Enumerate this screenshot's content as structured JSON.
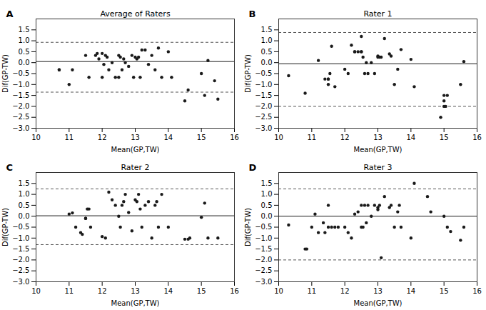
{
  "chart_data": [
    {
      "type": "scatter",
      "label": "A",
      "title": "Average of Raters",
      "xlabel": "Mean(GP,TW)",
      "ylabel": "Dif(GP-TW)",
      "x": [
        10.7,
        10.7,
        11.0,
        11.1,
        11.5,
        11.6,
        11.8,
        11.85,
        11.9,
        12.0,
        12.0,
        12.05,
        12.1,
        12.15,
        12.2,
        12.3,
        12.4,
        12.5,
        12.5,
        12.55,
        12.6,
        12.65,
        12.7,
        12.8,
        12.9,
        12.95,
        13.0,
        13.05,
        13.1,
        13.15,
        13.2,
        13.3,
        13.4,
        13.5,
        13.6,
        13.7,
        13.8,
        14.0,
        14.1,
        14.5,
        14.6,
        15.0,
        15.1,
        15.2,
        15.4,
        15.5
      ],
      "y": [
        -0.33,
        -0.33,
        -1.0,
        -0.33,
        0.33,
        -0.67,
        0.33,
        0.42,
        0.17,
        0.42,
        -0.67,
        -0.08,
        0.33,
        0.25,
        -0.33,
        0.0,
        -0.67,
        0.33,
        -0.67,
        0.25,
        -0.33,
        0.17,
        0.0,
        -0.17,
        0.33,
        -0.67,
        0.25,
        0.17,
        0.25,
        -0.67,
        0.58,
        0.58,
        -0.08,
        0.33,
        -0.33,
        0.67,
        -0.67,
        0.5,
        -0.67,
        -1.75,
        -1.25,
        -0.5,
        -1.5,
        0.1,
        -0.83,
        -1.67
      ],
      "color": "#1a1a1a",
      "mean_line": {
        "value": 0.05,
        "color": "#1a1a1a",
        "line_style": "solid"
      },
      "upper_loa": {
        "value": 0.93,
        "color": "#555555",
        "line_style": "dashed"
      },
      "lower_loa": {
        "value": -1.35,
        "color": "#555555",
        "line_style": "dashed"
      },
      "xlim": [
        10,
        16
      ],
      "xticks": [
        10,
        11,
        12,
        13,
        14,
        15,
        16
      ],
      "ylim": [
        -3,
        2
      ],
      "yticks": [
        {
          "value": -3,
          "label": "−3.0"
        },
        {
          "value": -2.5,
          "label": "−2.5"
        },
        {
          "value": -2,
          "label": "−2.0"
        },
        {
          "value": -1.5,
          "label": "−1.5"
        },
        {
          "value": -1,
          "label": "−1.0"
        },
        {
          "value": -0.5,
          "label": "−0.5"
        },
        {
          "value": 0,
          "label": "0.0"
        },
        0.5,
        {
          "value": 1,
          "label": "1.0"
        },
        1.5
      ],
      "grid": false
    },
    {
      "type": "scatter",
      "label": "B",
      "title": "Rater 1",
      "xlabel": "Mean(GP,TW)",
      "ylabel": "Dif(GP-TW)",
      "x": [
        10.3,
        10.8,
        11.2,
        11.4,
        11.5,
        11.5,
        11.5,
        11.55,
        11.6,
        11.7,
        12.0,
        12.1,
        12.2,
        12.3,
        12.3,
        12.4,
        12.5,
        12.5,
        12.5,
        12.55,
        12.6,
        12.65,
        12.7,
        12.8,
        12.9,
        13.0,
        13.0,
        13.05,
        13.1,
        13.2,
        13.35,
        13.4,
        13.5,
        13.6,
        13.7,
        14.0,
        14.1,
        14.9,
        15.0,
        15.0,
        15.0,
        15.05,
        15.1,
        15.5,
        15.6
      ],
      "y": [
        -0.6,
        -1.4,
        0.1,
        -0.75,
        -0.75,
        -1.0,
        -0.75,
        -0.5,
        0.75,
        -1.1,
        -0.3,
        -0.5,
        0.8,
        0.5,
        0.5,
        0.5,
        1.2,
        0.5,
        0.5,
        0.25,
        -0.5,
        0.0,
        -0.5,
        0.0,
        -0.5,
        0.3,
        0.25,
        0.25,
        0.25,
        1.1,
        0.4,
        0.3,
        -1.0,
        -0.3,
        0.6,
        0.15,
        -1.1,
        -2.5,
        -1.5,
        -1.75,
        -2.0,
        -2.0,
        -1.5,
        -1.0,
        0.05
      ],
      "color": "#1a1a1a",
      "mean_line": {
        "value": -0.05,
        "color": "#1a1a1a",
        "line_style": "solid"
      },
      "upper_loa": {
        "value": 1.38,
        "color": "#555555",
        "line_style": "dashed"
      },
      "lower_loa": {
        "value": -2.0,
        "color": "#555555",
        "line_style": "dashed"
      },
      "xlim": [
        10,
        16
      ],
      "xticks": [
        10,
        11,
        12,
        13,
        14,
        15,
        16
      ],
      "ylim": [
        -3,
        2
      ],
      "yticks": [
        {
          "value": -3,
          "label": "−3.0"
        },
        {
          "value": -2.5,
          "label": "−2.5"
        },
        {
          "value": -2,
          "label": "−2.0"
        },
        {
          "value": -1.5,
          "label": "−1.5"
        },
        {
          "value": -1,
          "label": "−1.0"
        },
        {
          "value": -0.5,
          "label": "−0.5"
        },
        {
          "value": 0,
          "label": "0.0"
        },
        0.5,
        {
          "value": 1,
          "label": "1.0"
        },
        1.5
      ],
      "grid": false
    },
    {
      "type": "scatter",
      "label": "C",
      "title": "Rater 2",
      "xlabel": "Mean(GP,TW)",
      "ylabel": "Dif(GP-TW)",
      "x": [
        11.0,
        11.1,
        11.2,
        11.35,
        11.4,
        11.5,
        11.5,
        11.55,
        11.6,
        11.65,
        12.0,
        12.1,
        12.2,
        12.3,
        12.4,
        12.5,
        12.55,
        12.6,
        12.65,
        12.7,
        12.8,
        12.9,
        13.0,
        13.05,
        13.1,
        13.15,
        13.2,
        13.3,
        13.4,
        13.5,
        13.6,
        13.65,
        13.7,
        13.8,
        14.0,
        14.5,
        14.6,
        14.65,
        15.0,
        15.1,
        15.2,
        15.5
      ],
      "y": [
        0.1,
        0.15,
        -0.5,
        -0.75,
        -0.83,
        -0.1,
        -0.1,
        0.33,
        0.33,
        -0.5,
        -0.93,
        -1.0,
        1.1,
        0.75,
        0.5,
        0.0,
        -0.5,
        0.5,
        0.67,
        1.0,
        0.17,
        -0.67,
        0.75,
        0.67,
        1.0,
        0.33,
        -0.5,
        0.5,
        0.67,
        -1.0,
        0.5,
        0.67,
        -0.5,
        1.0,
        -0.5,
        -1.05,
        -1.05,
        -1.0,
        -0.05,
        0.6,
        -1.0,
        -1.0
      ],
      "color": "#1a1a1a",
      "mean_line": {
        "value": 0.02,
        "color": "#1a1a1a",
        "line_style": "solid"
      },
      "upper_loa": {
        "value": 1.25,
        "color": "#555555",
        "line_style": "dashed"
      },
      "lower_loa": {
        "value": -1.3,
        "color": "#555555",
        "line_style": "dashed"
      },
      "xlim": [
        10,
        16
      ],
      "xticks": [
        10,
        11,
        12,
        13,
        14,
        15,
        16
      ],
      "ylim": [
        -3,
        2
      ],
      "yticks": [
        {
          "value": -3,
          "label": "−3.0"
        },
        {
          "value": -2.5,
          "label": "−2.5"
        },
        {
          "value": -2,
          "label": "−2.0"
        },
        {
          "value": -1.5,
          "label": "−1.5"
        },
        {
          "value": -1,
          "label": "−1.0"
        },
        {
          "value": -0.5,
          "label": "−0.5"
        },
        {
          "value": 0,
          "label": "0.0"
        },
        0.5,
        {
          "value": 1,
          "label": "1.0"
        },
        1.5
      ],
      "grid": false
    },
    {
      "type": "scatter",
      "label": "D",
      "title": "Rater 3",
      "xlabel": "Mean(GP,TW)",
      "ylabel": "Dif(GP-TW)",
      "x": [
        10.3,
        10.8,
        10.85,
        11.0,
        11.1,
        11.2,
        11.35,
        11.4,
        11.5,
        11.5,
        11.6,
        11.7,
        11.8,
        12.0,
        12.1,
        12.2,
        12.3,
        12.4,
        12.5,
        12.5,
        12.55,
        12.6,
        12.65,
        12.7,
        12.8,
        12.9,
        13.0,
        13.0,
        13.05,
        13.1,
        13.2,
        13.35,
        13.4,
        13.5,
        13.6,
        13.65,
        13.7,
        14.0,
        14.1,
        14.5,
        14.6,
        15.0,
        15.1,
        15.2,
        15.5,
        15.6
      ],
      "y": [
        -0.4,
        -1.5,
        -1.5,
        -0.5,
        0.1,
        -0.75,
        -0.3,
        -0.75,
        0.5,
        -0.5,
        -0.5,
        -0.5,
        -0.5,
        -0.5,
        -0.75,
        -1.0,
        0.1,
        0.2,
        0.5,
        -0.5,
        -0.5,
        0.5,
        -0.3,
        0.5,
        0.0,
        0.5,
        0.3,
        0.4,
        0.5,
        -1.9,
        0.9,
        0.4,
        0.5,
        -0.5,
        0.2,
        0.5,
        -0.5,
        -1.0,
        1.5,
        0.9,
        0.2,
        0.0,
        -0.5,
        -0.7,
        -1.1,
        -0.5
      ],
      "color": "#1a1a1a",
      "mean_line": {
        "value": 0.0,
        "color": "#1a1a1a",
        "line_style": "solid"
      },
      "upper_loa": {
        "value": 1.25,
        "color": "#555555",
        "line_style": "dashed"
      },
      "lower_loa": {
        "value": -2.0,
        "color": "#555555",
        "line_style": "dashed"
      },
      "xlim": [
        10,
        16
      ],
      "xticks": [
        10,
        11,
        12,
        13,
        14,
        15,
        16
      ],
      "ylim": [
        -3,
        2
      ],
      "yticks": [
        {
          "value": -3,
          "label": "−3.0"
        },
        {
          "value": -2.5,
          "label": "−2.5"
        },
        {
          "value": -2,
          "label": "−2.0"
        },
        {
          "value": -1.5,
          "label": "−1.5"
        },
        {
          "value": -1,
          "label": "−1.0"
        },
        {
          "value": -0.5,
          "label": "−0.5"
        },
        {
          "value": 0,
          "label": "0.0"
        },
        0.5,
        {
          "value": 1,
          "label": "1.0"
        },
        1.5
      ],
      "grid": false
    }
  ]
}
